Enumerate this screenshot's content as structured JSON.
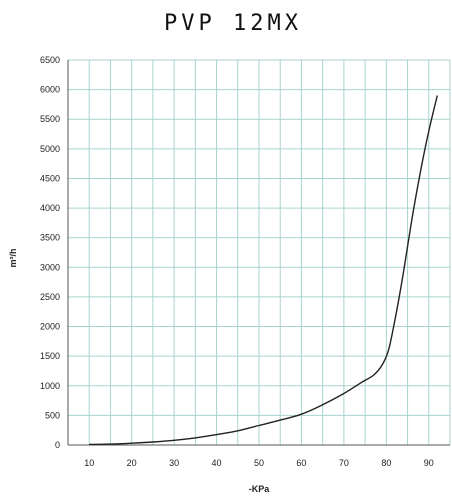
{
  "chart_data": {
    "type": "line",
    "title": "PVP 12MX",
    "xlabel": "-KPa",
    "ylabel": "m³/h",
    "xlim": [
      5,
      95
    ],
    "ylim": [
      0,
      6500
    ],
    "x_ticks": [
      10,
      20,
      30,
      40,
      50,
      60,
      70,
      80,
      90
    ],
    "y_ticks": [
      0,
      500,
      1000,
      1500,
      2000,
      2500,
      3000,
      3500,
      4000,
      4500,
      5000,
      5500,
      6000,
      6500
    ],
    "grid": true,
    "colors": {
      "grid": "#a9d3cf",
      "line": "#222222",
      "axis": "#555555"
    },
    "series": [
      {
        "x": [
          10,
          15,
          20,
          25,
          30,
          35,
          40,
          45,
          50,
          55,
          60,
          65,
          70,
          74,
          77,
          79,
          80.5,
          82,
          84,
          86,
          88,
          90,
          92
        ],
        "values": [
          10,
          15,
          30,
          50,
          80,
          120,
          175,
          240,
          330,
          420,
          520,
          680,
          870,
          1050,
          1180,
          1350,
          1600,
          2100,
          2900,
          3800,
          4600,
          5300,
          5900
        ]
      }
    ]
  }
}
